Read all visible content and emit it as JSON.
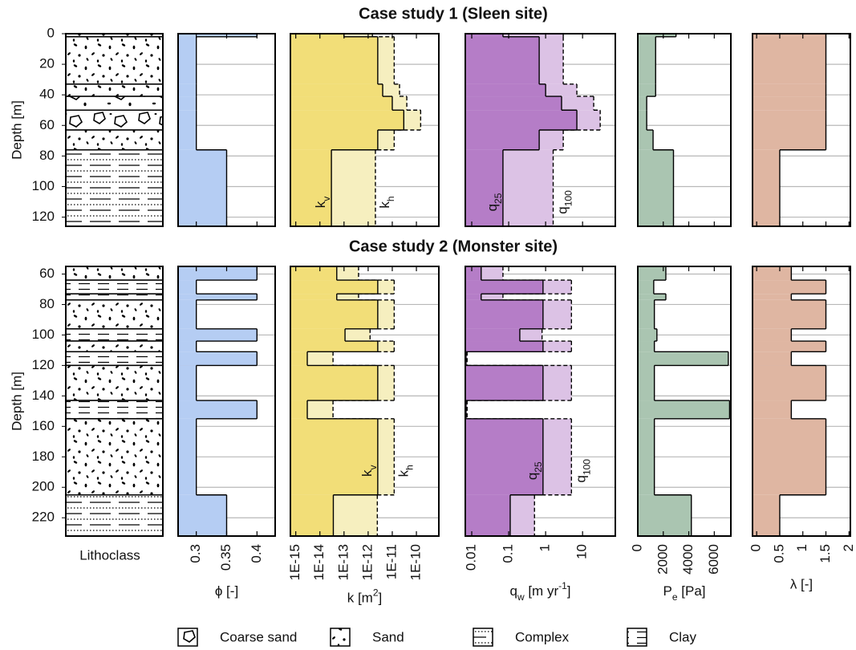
{
  "chart_data": [
    {
      "type": "step-profile",
      "title": "Case study 1 (Sleen site)",
      "ylabel": "Depth [m]",
      "ylim": [
        0,
        126
      ],
      "yticks": [
        0,
        20,
        40,
        60,
        80,
        100,
        120
      ],
      "layer_bounds": [
        0,
        2,
        33,
        41,
        50,
        63,
        76,
        126
      ],
      "lithoclass": [
        "Sand",
        "Sand",
        "Sand",
        "Coarse sand",
        "Coarse sand",
        "Sand",
        "Complex"
      ],
      "profiles": {
        "phi": [
          0.4,
          0.3,
          0.3,
          0.3,
          0.3,
          0.3,
          0.35
        ],
        "kh": [
          1.5e-12,
          1.2e-11,
          2e-11,
          4e-11,
          1.5e-10,
          1.2e-11,
          2e-12
        ],
        "kv": [
          1e-13,
          2.5e-12,
          4e-12,
          1e-11,
          3e-11,
          2.5e-12,
          3e-14
        ],
        "q100": [
          3,
          3,
          7,
          20,
          30,
          3,
          1.6
        ],
        "q25": [
          0.07,
          0.67,
          1,
          2.7,
          7,
          0.67,
          0.07
        ],
        "pe": [
          3000,
          1400,
          1400,
          700,
          700,
          1200,
          2800
        ],
        "lambda": [
          1.5,
          1.5,
          1.5,
          1.5,
          1.5,
          1.5,
          0.5
        ]
      }
    },
    {
      "type": "step-profile",
      "title": "Case study 2 (Monster site)",
      "ylabel": "Depth [m]",
      "ylim": [
        55,
        232
      ],
      "yticks": [
        60,
        80,
        100,
        120,
        140,
        160,
        180,
        200,
        220
      ],
      "layer_bounds": [
        55,
        64,
        73,
        77,
        96,
        104,
        111,
        120,
        143,
        155,
        205,
        232
      ],
      "lithoclass": [
        "Sand",
        "Clay",
        "Clay",
        "Sand",
        "Clay",
        "Sand",
        "Clay",
        "Sand",
        "Clay",
        "Sand",
        "Complex"
      ],
      "profiles": {
        "phi": [
          0.4,
          0.3,
          0.4,
          0.3,
          0.4,
          0.3,
          0.4,
          0.3,
          0.4,
          0.3,
          0.35
        ],
        "kh": [
          4e-13,
          1.2e-11,
          4e-13,
          1.2e-11,
          1.2e-12,
          1.2e-11,
          3.5e-14,
          1.2e-11,
          3.5e-14,
          1.2e-11,
          2.4e-12
        ],
        "kv": [
          5e-14,
          2.5e-12,
          5e-14,
          2.5e-12,
          1.1e-13,
          2.5e-12,
          3e-15,
          2.5e-12,
          3e-15,
          2.5e-12,
          3.6e-14
        ],
        "q100": [
          0.07,
          5,
          0.07,
          5,
          0.8,
          5,
          0.0075,
          5,
          0.0075,
          5,
          0.5
        ],
        "q25": [
          0.018,
          0.85,
          0.018,
          0.85,
          0.2,
          0.85,
          0.007,
          0.85,
          0.007,
          0.85,
          0.11
        ],
        "pe": [
          2200,
          1250,
          2200,
          1300,
          1500,
          1300,
          7100,
          1300,
          7200,
          1300,
          4200
        ],
        "lambda": [
          0.75,
          1.5,
          0.75,
          1.5,
          0.75,
          1.5,
          0.75,
          1.5,
          0.75,
          1.5,
          0.5
        ]
      }
    }
  ],
  "lithoclass_label": "Lithoclass",
  "panels": [
    {
      "xlabel": [
        {
          "text": "ϕ [-]"
        }
      ],
      "xlim": [
        0.27,
        0.43
      ],
      "xticks": [
        0.3,
        0.35,
        0.4
      ],
      "series": [
        {
          "key": "phi",
          "color": "#b5cdf3"
        }
      ]
    },
    {
      "xlabel": [
        {
          "text": "k [m"
        },
        {
          "text": "2",
          "shift": "super"
        },
        {
          "text": "]"
        }
      ],
      "log": true,
      "xlim": [
        6e-16,
        8.5e-10
      ],
      "xticks": [
        {
          "value": 1e-15,
          "label": "1E-15"
        },
        {
          "value": 1e-14,
          "label": "1E-14"
        },
        {
          "value": 1e-13,
          "label": "1E-13"
        },
        {
          "value": 1e-12,
          "label": "1E-12"
        },
        {
          "value": 1e-11,
          "label": "1E-11"
        },
        {
          "value": 1e-10,
          "label": "1E-10"
        }
      ],
      "series": [
        {
          "key": "kh",
          "color": "#f6efbf",
          "dashed": true,
          "name": [
            {
              "text": "k"
            },
            {
              "text": "h",
              "shift": "sub"
            }
          ]
        },
        {
          "key": "kv",
          "color": "#f2de78",
          "name": [
            {
              "text": "k"
            },
            {
              "text": "v",
              "shift": "sub"
            }
          ]
        }
      ]
    },
    {
      "xlabel": [
        {
          "text": "q"
        },
        {
          "text": "w",
          "shift": "sub"
        },
        {
          "text": " [m yr"
        },
        {
          "text": "-1",
          "shift": "super"
        },
        {
          "text": "]"
        }
      ],
      "log": true,
      "xlim": [
        0.0067,
        77
      ],
      "xticks": [
        0.01,
        0.1,
        1,
        10
      ],
      "series": [
        {
          "key": "q100",
          "color": "#dcc2e5",
          "dashed": true,
          "name": [
            {
              "text": "q"
            },
            {
              "text": "100",
              "shift": "sub"
            }
          ]
        },
        {
          "key": "q25",
          "color": "#b57dc7",
          "name": [
            {
              "text": "q"
            },
            {
              "text": "25",
              "shift": "sub"
            }
          ]
        }
      ]
    },
    {
      "xlabel": [
        {
          "text": "P"
        },
        {
          "text": "e",
          "shift": "sub"
        },
        {
          "text": " [Pa]"
        }
      ],
      "xlim": [
        0,
        7300
      ],
      "xticks": [
        0,
        2000,
        4000,
        6000
      ],
      "series": [
        {
          "key": "pe",
          "color": "#aac5b1"
        }
      ]
    },
    {
      "xlabel": [
        {
          "text": "λ [-]"
        }
      ],
      "xlim": [
        -0.09,
        2.03
      ],
      "xticks": [
        0,
        0.5,
        1,
        1.5,
        2
      ],
      "series": [
        {
          "key": "lambda",
          "color": "#dfb6a2"
        }
      ]
    }
  ],
  "legend": [
    "Coarse sand",
    "Sand",
    "Complex",
    "Clay"
  ]
}
